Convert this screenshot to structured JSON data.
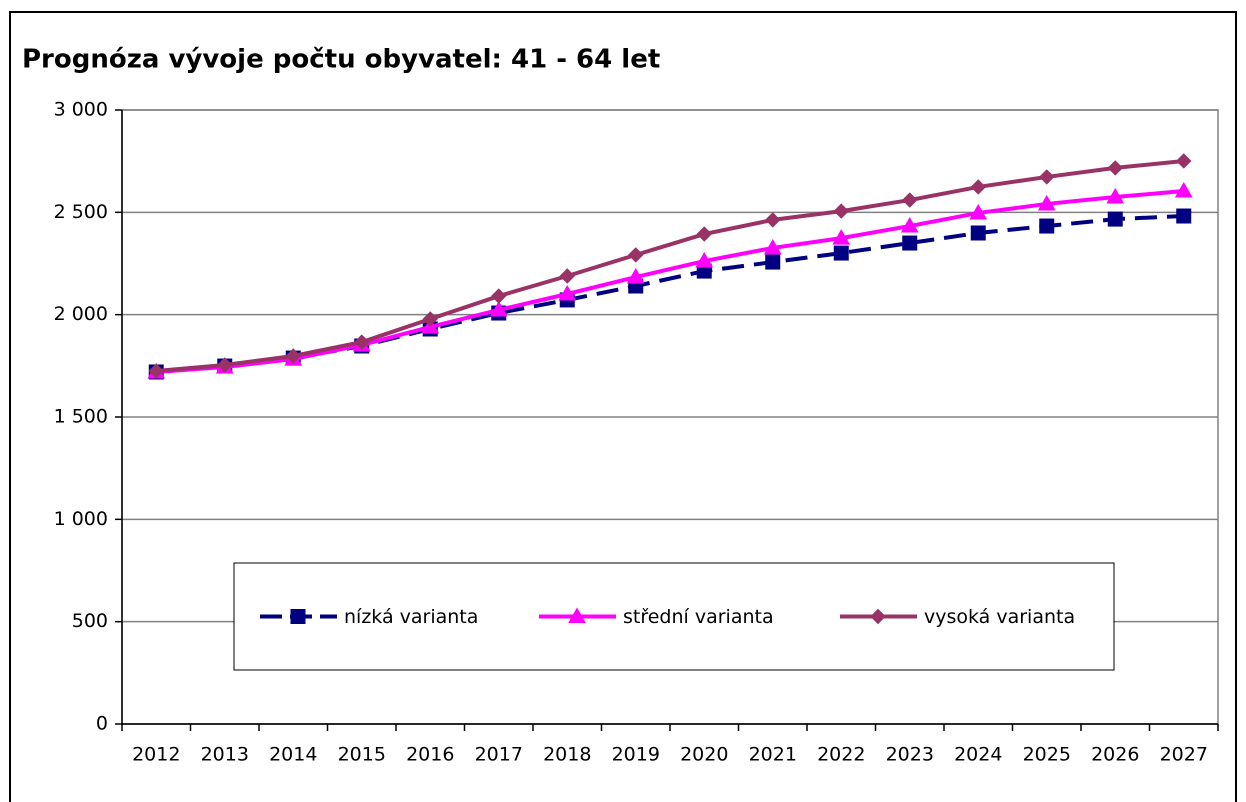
{
  "chart_data": {
    "type": "line",
    "title": "Prognóza vývoje počtu obyvatel: 41 - 64 let",
    "categories": [
      "2012",
      "2013",
      "2014",
      "2015",
      "2016",
      "2017",
      "2018",
      "2019",
      "2020",
      "2021",
      "2022",
      "2023",
      "2024",
      "2025",
      "2026",
      "2027"
    ],
    "series": [
      {
        "name": "nízká varianta",
        "color": "#000080",
        "marker": "square",
        "linestyle": "dashed",
        "values": [
          1720,
          1749,
          1788,
          1847,
          1930,
          2008,
          2072,
          2140,
          2213,
          2257,
          2301,
          2350,
          2399,
          2433,
          2467,
          2482
        ]
      },
      {
        "name": "střední varianta",
        "color": "#ff00ff",
        "marker": "triangle",
        "linestyle": "solid",
        "values": [
          1720,
          1744,
          1783,
          1852,
          1940,
          2023,
          2101,
          2184,
          2262,
          2326,
          2374,
          2433,
          2497,
          2541,
          2575,
          2604
        ]
      },
      {
        "name": "vysoká varianta",
        "color": "#993366",
        "marker": "diamond",
        "linestyle": "solid",
        "values": [
          1725,
          1754,
          1798,
          1866,
          1979,
          2091,
          2189,
          2292,
          2394,
          2463,
          2506,
          2560,
          2624,
          2673,
          2717,
          2751
        ]
      }
    ],
    "ylim": [
      0,
      3000
    ],
    "yticks": [
      0,
      500,
      {
        "value": 1000,
        "label": "1 000"
      },
      {
        "value": 1500,
        "label": "1 500"
      },
      {
        "value": 2000,
        "label": "2 000"
      },
      {
        "value": 2500,
        "label": "2 500"
      },
      {
        "value": 3000,
        "label": "3 000"
      }
    ],
    "grid": true,
    "legend": "lower center"
  }
}
